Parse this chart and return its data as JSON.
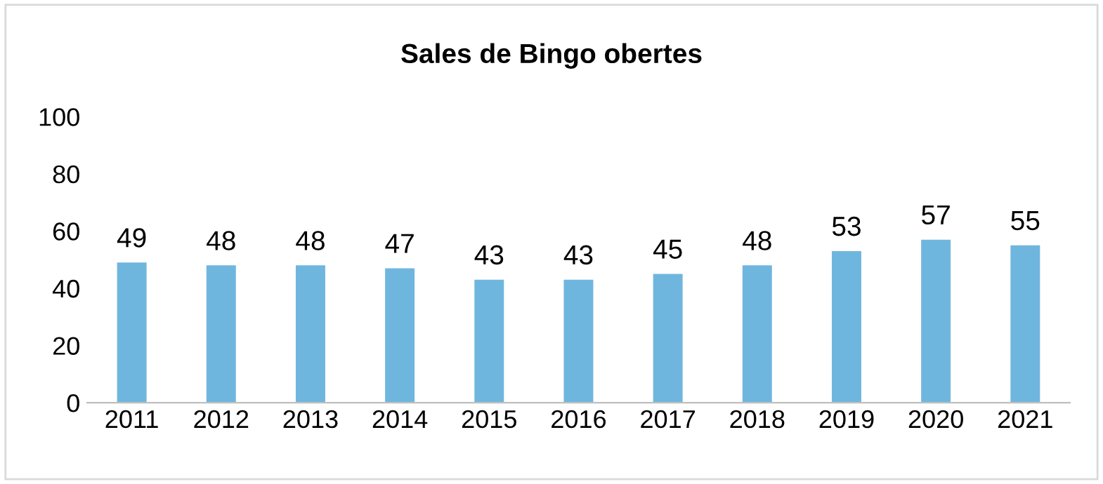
{
  "chart_data": {
    "type": "bar",
    "title": "Sales de Bingo obertes",
    "categories": [
      "2011",
      "2012",
      "2013",
      "2014",
      "2015",
      "2016",
      "2017",
      "2018",
      "2019",
      "2020",
      "2021"
    ],
    "values": [
      49,
      48,
      48,
      47,
      43,
      43,
      45,
      48,
      53,
      57,
      55
    ],
    "color": "#6fb6de",
    "ylim": [
      0,
      100
    ],
    "yticks": [
      0,
      20,
      40,
      60,
      80,
      100
    ],
    "grid": false,
    "data_labels": true
  }
}
